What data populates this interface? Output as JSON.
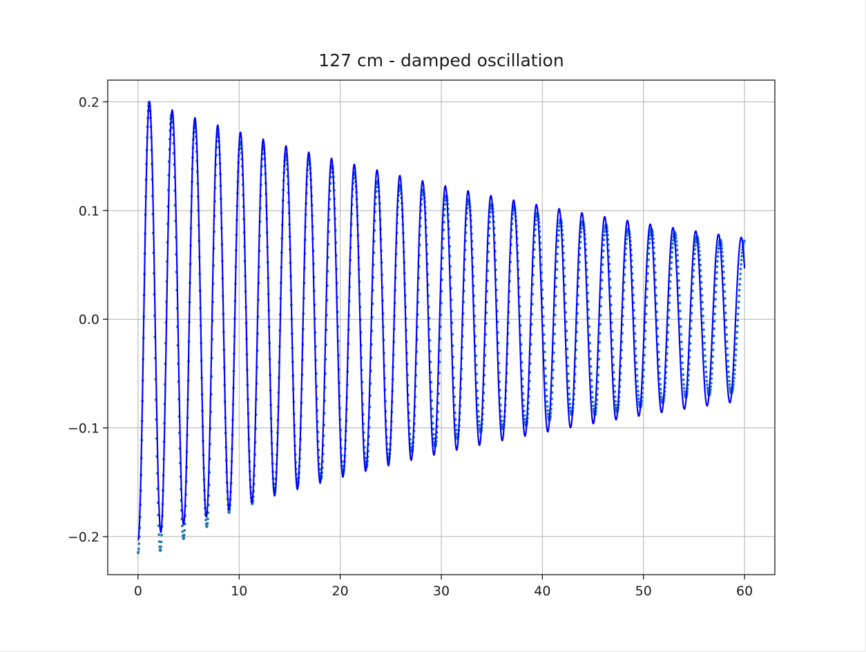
{
  "chart_data": {
    "type": "line",
    "title": "127 cm - damped oscillation",
    "xlabel": "",
    "ylabel": "",
    "xlim": [
      -3,
      63
    ],
    "ylim": [
      -0.235,
      0.22
    ],
    "grid": true,
    "x_ticks": [
      0,
      10,
      20,
      30,
      40,
      50,
      60
    ],
    "x_tick_labels": [
      "0",
      "10",
      "20",
      "30",
      "40",
      "50",
      "60"
    ],
    "y_ticks": [
      -0.2,
      -0.1,
      0.0,
      0.1,
      0.2
    ],
    "y_tick_labels": [
      "−0.2",
      "−0.1",
      "0.0",
      "0.1",
      "0.2"
    ],
    "series": [
      {
        "kind": "measured-points",
        "color": "#1f77b4",
        "x_range": [
          0,
          60
        ],
        "peak_times": [
          1.1,
          3.3,
          5.6,
          7.9,
          10.1,
          12.4,
          14.6,
          16.9,
          19.2,
          21.4,
          23.7,
          25.9,
          28.2,
          30.5,
          32.7,
          35.0,
          37.2,
          39.5,
          41.8,
          44.0,
          46.3,
          48.5,
          50.8,
          53.1,
          55.3,
          57.6
        ],
        "peak_values": [
          0.2,
          0.188,
          0.179,
          0.171,
          0.163,
          0.159,
          0.152,
          0.148,
          0.141,
          0.135,
          0.127,
          0.123,
          0.119,
          0.114,
          0.11,
          0.106,
          0.104,
          0.098,
          0.092,
          0.09,
          0.087,
          0.083,
          0.083,
          0.08,
          0.076,
          0.073
        ],
        "trough_times": [
          2.2,
          4.5,
          6.8,
          9.0,
          11.3,
          13.5,
          15.8,
          18.1,
          20.3,
          22.6,
          24.8,
          27.1,
          29.4,
          31.6,
          33.9,
          36.1,
          38.4,
          40.7,
          42.9,
          45.2,
          47.4,
          49.7,
          51.9,
          54.2,
          56.5,
          58.7
        ],
        "trough_values": [
          -0.213,
          -0.202,
          -0.191,
          -0.178,
          -0.17,
          -0.158,
          -0.152,
          -0.147,
          -0.141,
          -0.136,
          -0.129,
          -0.122,
          -0.117,
          -0.11,
          -0.104,
          -0.101,
          -0.098,
          -0.093,
          -0.088,
          -0.088,
          -0.085,
          -0.081,
          -0.077,
          -0.072,
          -0.07,
          -0.068
        ],
        "start_value": -0.215,
        "end_value": 0.072
      },
      {
        "kind": "fitted-curve",
        "color": "#0000ff",
        "model": "y = A * exp(-t / tau) * sin(omega * t + phi)",
        "A": 0.2035,
        "tau": 60.0,
        "omega": 2.79,
        "phi": -1.571,
        "x_range": [
          0,
          60
        ]
      }
    ]
  }
}
